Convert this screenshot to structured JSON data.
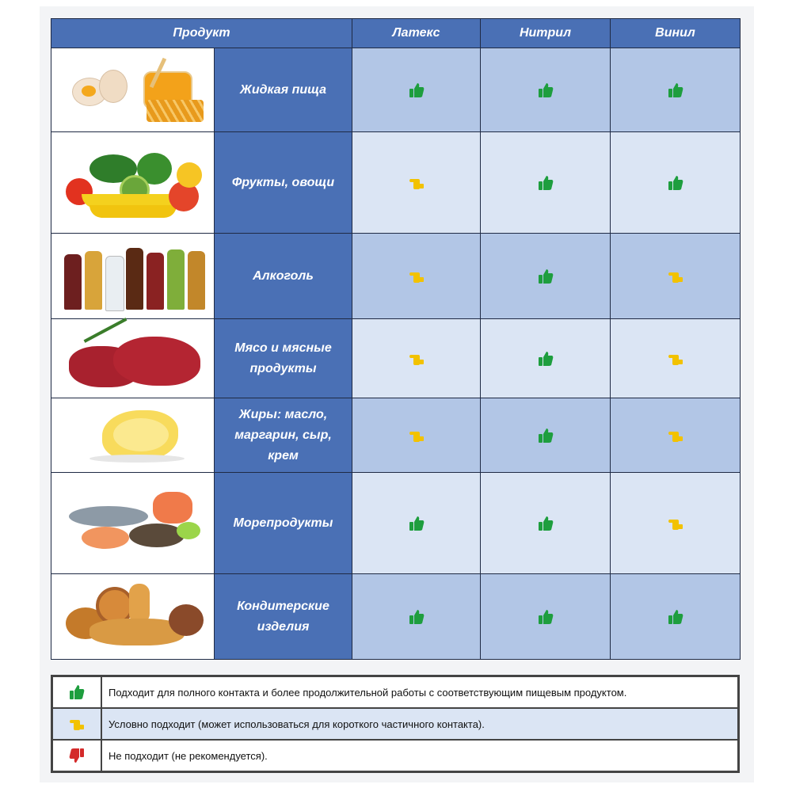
{
  "colors": {
    "header_blue": "#4a70b5",
    "cell_dark": "#b2c6e6",
    "cell_light": "#dbe5f4",
    "thumb_green": "#1e9e3e",
    "thumb_yellow": "#f2c200",
    "thumb_red": "#d42a2a"
  },
  "header": {
    "product": "Продукт",
    "latex": "Латекс",
    "nitrile": "Нитрил",
    "vinyl": "Винил"
  },
  "rows": [
    {
      "name": "Жидкая пища",
      "picture": "eggs-honey-icon",
      "latex": "good",
      "nitrile": "good",
      "vinyl": "good"
    },
    {
      "name": "Фрукты, овощи",
      "picture": "fruits-vegetables-icon",
      "latex": "conditional",
      "nitrile": "good",
      "vinyl": "good"
    },
    {
      "name": "Алкоголь",
      "picture": "bottles-icon",
      "latex": "conditional",
      "nitrile": "good",
      "vinyl": "conditional"
    },
    {
      "name": "Мясо и мясные продукты",
      "picture": "meat-icon",
      "latex": "conditional",
      "nitrile": "good",
      "vinyl": "conditional"
    },
    {
      "name": "Жиры: масло, маргарин, сыр, крем",
      "picture": "butter-curl-icon",
      "latex": "conditional",
      "nitrile": "good",
      "vinyl": "conditional"
    },
    {
      "name": "Морепродукты",
      "picture": "seafood-icon",
      "latex": "good",
      "nitrile": "good",
      "vinyl": "conditional"
    },
    {
      "name": "Кондитерские изделия",
      "picture": "pastry-icon",
      "latex": "good",
      "nitrile": "good",
      "vinyl": "good"
    }
  ],
  "legend": [
    {
      "icon": "thumbs-up-green-icon",
      "text": "Подходит для полного контакта и более продолжительной работы с соответствующим пищевым продуктом."
    },
    {
      "icon": "thumbs-side-yellow-icon",
      "text": "Условно подходит (может использоваться для короткого частичного контакта)."
    },
    {
      "icon": "thumbs-down-red-icon",
      "text": "Не подходит (не рекомендуется)."
    }
  ]
}
